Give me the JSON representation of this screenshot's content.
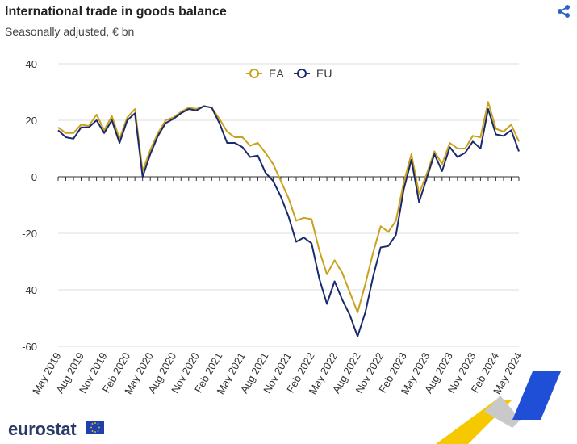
{
  "header": {
    "title": "International trade in goods balance",
    "subtitle": "Seasonally adjusted, € bn",
    "share_icon": "share-icon"
  },
  "footer": {
    "logo_text": "eurostat",
    "flag_icon": "eu-flag-icon"
  },
  "colors": {
    "EA": "#c9a11c",
    "EU": "#1b2a6b",
    "grid": "#dddddd",
    "axis": "#333333"
  },
  "chart_data": {
    "type": "line",
    "title": "International trade in goods balance",
    "subtitle": "Seasonally adjusted, € bn",
    "ylim": [
      -60,
      40
    ],
    "y_ticks": [
      40,
      20,
      0,
      -20,
      -40,
      -60
    ],
    "grid": true,
    "legend_position": "top-center",
    "x": [
      "May 2019",
      "Jun 2019",
      "Jul 2019",
      "Aug 2019",
      "Sep 2019",
      "Oct 2019",
      "Nov 2019",
      "Dec 2019",
      "Jan 2020",
      "Feb 2020",
      "Mar 2020",
      "Apr 2020",
      "May 2020",
      "Jun 2020",
      "Jul 2020",
      "Aug 2020",
      "Sep 2020",
      "Oct 2020",
      "Nov 2020",
      "Dec 2020",
      "Jan 2021",
      "Feb 2021",
      "Mar 2021",
      "Apr 2021",
      "May 2021",
      "Jun 2021",
      "Jul 2021",
      "Aug 2021",
      "Sep 2021",
      "Oct 2021",
      "Nov 2021",
      "Dec 2021",
      "Jan 2022",
      "Feb 2022",
      "Mar 2022",
      "Apr 2022",
      "May 2022",
      "Jun 2022",
      "Jul 2022",
      "Aug 2022",
      "Sep 2022",
      "Oct 2022",
      "Nov 2022",
      "Dec 2022",
      "Jan 2023",
      "Feb 2023",
      "Mar 2023",
      "Apr 2023",
      "May 2023",
      "Jun 2023",
      "Jul 2023",
      "Aug 2023",
      "Sep 2023",
      "Oct 2023",
      "Nov 2023",
      "Dec 2023",
      "Jan 2024",
      "Feb 2024",
      "Mar 2024",
      "Apr 2024",
      "May 2024"
    ],
    "x_tick_labels": [
      "May 2019",
      "Aug 2019",
      "Nov 2019",
      "Feb 2020",
      "May 2020",
      "Aug 2020",
      "Nov 2020",
      "Feb 2021",
      "May 2021",
      "Aug 2021",
      "Nov 2021",
      "Feb 2022",
      "May 2022",
      "Aug 2022",
      "Nov 2022",
      "Feb 2023",
      "May 2023",
      "Aug 2023",
      "Nov 2023",
      "Feb 2024",
      "May 2024"
    ],
    "series": [
      {
        "name": "EA",
        "values": [
          17.5,
          15.5,
          15.5,
          18.5,
          18.0,
          22.0,
          16.5,
          21.5,
          13.5,
          21.0,
          24.0,
          2.0,
          9.5,
          15.5,
          20.0,
          21.0,
          23.0,
          24.5,
          24.0,
          25.0,
          24.5,
          20.5,
          16.0,
          14.0,
          14.0,
          11.0,
          12.0,
          8.5,
          4.5,
          -1.5,
          -7.5,
          -15.5,
          -14.5,
          -15.0,
          -26.0,
          -34.5,
          -29.5,
          -34.0,
          -41.0,
          -48.0,
          -38.0,
          -27.0,
          -17.5,
          -19.5,
          -15.5,
          -2.0,
          8.0,
          -6.0,
          1.0,
          9.0,
          4.5,
          12.0,
          10.0,
          10.0,
          14.5,
          14.0,
          26.5,
          17.0,
          16.0,
          18.5,
          12.5
        ]
      },
      {
        "name": "EU",
        "values": [
          16.5,
          14.0,
          13.5,
          17.5,
          17.5,
          20.0,
          15.5,
          20.0,
          12.0,
          20.0,
          22.5,
          0.0,
          8.0,
          14.5,
          19.0,
          20.5,
          22.5,
          24.0,
          23.5,
          25.0,
          24.5,
          19.0,
          12.0,
          12.0,
          10.5,
          7.0,
          7.5,
          1.5,
          -1.5,
          -7.0,
          -14.0,
          -23.0,
          -21.5,
          -23.5,
          -36.0,
          -45.0,
          -37.0,
          -43.5,
          -49.0,
          -56.5,
          -48.0,
          -35.5,
          -25.0,
          -24.5,
          -20.5,
          -4.5,
          6.0,
          -9.0,
          -0.5,
          8.0,
          2.0,
          10.5,
          7.0,
          8.5,
          12.5,
          10.0,
          24.0,
          15.0,
          14.5,
          16.5,
          9.0
        ]
      }
    ]
  }
}
